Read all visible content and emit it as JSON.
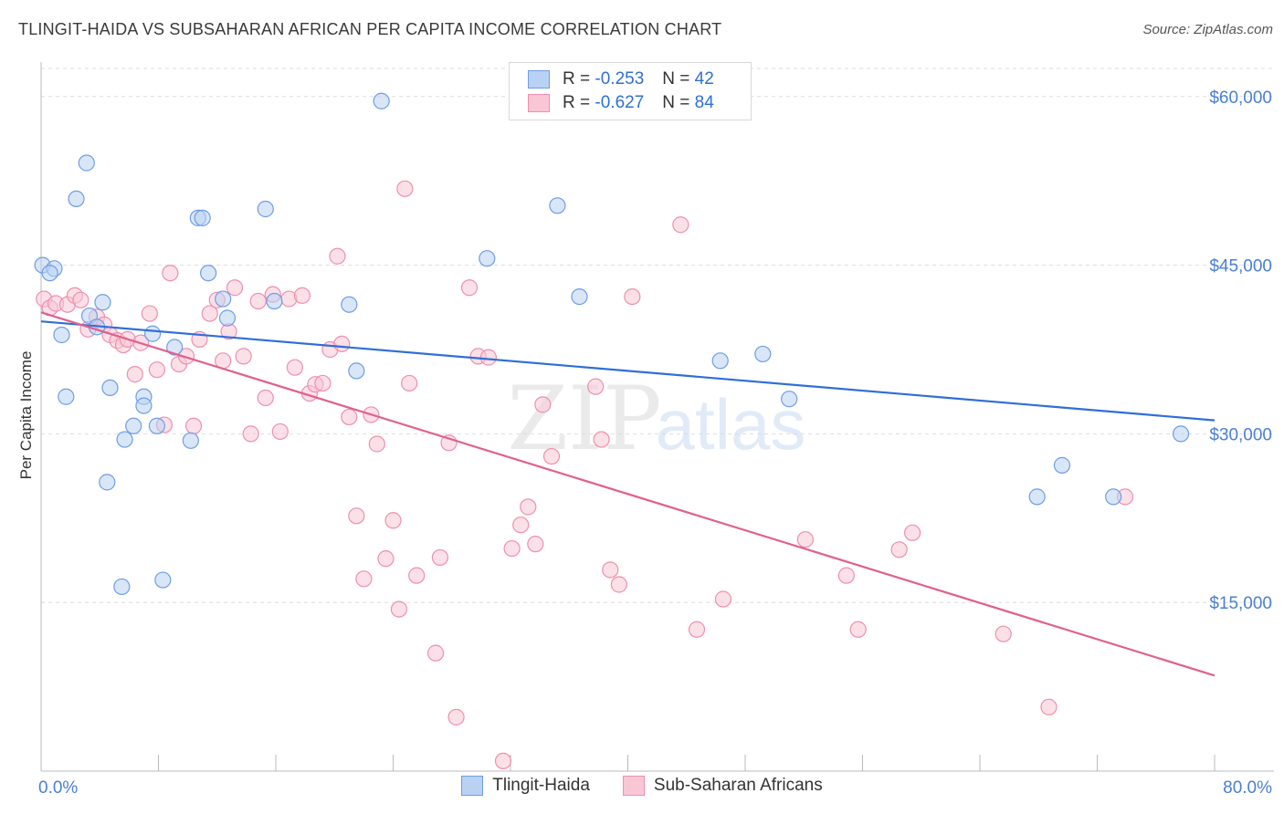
{
  "title": "TLINGIT-HAIDA VS SUBSAHARAN AFRICAN PER CAPITA INCOME CORRELATION CHART",
  "source": "Source: ZipAtlas.com",
  "watermark": {
    "zip": "ZIP",
    "atlas": "atlas"
  },
  "legend": {
    "rows": [
      {
        "r_label": "R =",
        "r_value": "-0.253",
        "n_label": "N =",
        "n_value": "42"
      },
      {
        "r_label": "R =",
        "r_value": "-0.627",
        "n_label": "N =",
        "n_value": "84"
      }
    ]
  },
  "colors": {
    "blue_fill": "#b9d1f3",
    "blue_stroke": "#6d9ee6",
    "blue_line": "#2f6fd6",
    "pink_fill": "#f9c6d6",
    "pink_stroke": "#ee8fb0",
    "pink_line": "#e0608e",
    "tick_label": "#4a7fd4",
    "grid": "#dddddd"
  },
  "chart_data": {
    "type": "scatter",
    "title": "TLINGIT-HAIDA VS SUBSAHARAN AFRICAN PER CAPITA INCOME CORRELATION CHART",
    "xlabel": "",
    "ylabel": "Per Capita Income",
    "xlim": [
      0,
      80
    ],
    "ylim": [
      0,
      62500
    ],
    "x_tick_labels": [
      "0.0%",
      "80.0%"
    ],
    "y_ticks": [
      15000,
      30000,
      45000,
      60000
    ],
    "y_tick_labels": [
      "$15,000",
      "$30,000",
      "$45,000",
      "$60,000"
    ],
    "grid": true,
    "legend_position": "top-center",
    "series": [
      {
        "name": "Tlingit-Haida",
        "trend": {
          "x": [
            0,
            80
          ],
          "y": [
            40000,
            31200
          ]
        },
        "points": [
          [
            0.1,
            45000
          ],
          [
            0.9,
            44700
          ],
          [
            1.4,
            38800
          ],
          [
            1.7,
            33300
          ],
          [
            2.4,
            50900
          ],
          [
            3.1,
            54100
          ],
          [
            3.3,
            40500
          ],
          [
            4.2,
            41700
          ],
          [
            3.8,
            39500
          ],
          [
            4.5,
            25700
          ],
          [
            4.7,
            34100
          ],
          [
            5.5,
            16400
          ],
          [
            5.7,
            29500
          ],
          [
            6.3,
            30700
          ],
          [
            7.0,
            33300
          ],
          [
            7.0,
            32500
          ],
          [
            7.6,
            38900
          ],
          [
            7.9,
            30700
          ],
          [
            8.3,
            17000
          ],
          [
            9.1,
            37700
          ],
          [
            10.2,
            29400
          ],
          [
            10.7,
            49200
          ],
          [
            11.0,
            49200
          ],
          [
            11.4,
            44300
          ],
          [
            12.4,
            42000
          ],
          [
            12.7,
            40300
          ],
          [
            15.3,
            50000
          ],
          [
            15.9,
            41800
          ],
          [
            23.2,
            59600
          ],
          [
            21.0,
            41500
          ],
          [
            21.5,
            35600
          ],
          [
            30.4,
            45600
          ],
          [
            35.2,
            50300
          ],
          [
            36.7,
            42200
          ],
          [
            46.3,
            36500
          ],
          [
            49.2,
            37100
          ],
          [
            51.0,
            33100
          ],
          [
            67.9,
            24400
          ],
          [
            69.6,
            27200
          ],
          [
            73.1,
            24400
          ],
          [
            77.7,
            30000
          ],
          [
            0.6,
            44300
          ]
        ]
      },
      {
        "name": "Sub-Saharan Africans",
        "trend": {
          "x": [
            0,
            80
          ],
          "y": [
            40800,
            8500
          ]
        },
        "points": [
          [
            0.2,
            42000
          ],
          [
            0.6,
            41200
          ],
          [
            1.0,
            41600
          ],
          [
            1.8,
            41500
          ],
          [
            2.3,
            42300
          ],
          [
            2.7,
            41900
          ],
          [
            3.2,
            39300
          ],
          [
            3.8,
            40400
          ],
          [
            4.3,
            39700
          ],
          [
            4.7,
            38800
          ],
          [
            5.2,
            38300
          ],
          [
            5.6,
            37900
          ],
          [
            5.9,
            38400
          ],
          [
            6.4,
            35300
          ],
          [
            6.8,
            38100
          ],
          [
            7.4,
            40700
          ],
          [
            7.9,
            35700
          ],
          [
            8.4,
            30800
          ],
          [
            8.8,
            44300
          ],
          [
            9.4,
            36200
          ],
          [
            9.9,
            36900
          ],
          [
            10.4,
            30700
          ],
          [
            10.8,
            38400
          ],
          [
            11.5,
            40700
          ],
          [
            12.0,
            41900
          ],
          [
            12.4,
            36500
          ],
          [
            12.8,
            39100
          ],
          [
            13.2,
            43000
          ],
          [
            13.8,
            36900
          ],
          [
            14.3,
            30000
          ],
          [
            14.8,
            41800
          ],
          [
            15.3,
            33200
          ],
          [
            15.8,
            42400
          ],
          [
            16.3,
            30200
          ],
          [
            16.9,
            42000
          ],
          [
            17.3,
            35900
          ],
          [
            17.8,
            42300
          ],
          [
            18.3,
            33600
          ],
          [
            18.7,
            34400
          ],
          [
            19.2,
            34500
          ],
          [
            19.7,
            37500
          ],
          [
            20.2,
            45800
          ],
          [
            20.5,
            38000
          ],
          [
            21.0,
            31500
          ],
          [
            21.5,
            22700
          ],
          [
            22.0,
            17100
          ],
          [
            22.5,
            31700
          ],
          [
            22.9,
            29100
          ],
          [
            23.5,
            18900
          ],
          [
            24.0,
            22300
          ],
          [
            24.4,
            14400
          ],
          [
            24.8,
            51800
          ],
          [
            25.1,
            34500
          ],
          [
            25.6,
            17400
          ],
          [
            26.9,
            10500
          ],
          [
            27.2,
            19000
          ],
          [
            27.8,
            29200
          ],
          [
            28.3,
            4800
          ],
          [
            29.2,
            43000
          ],
          [
            29.8,
            36900
          ],
          [
            30.5,
            36800
          ],
          [
            31.5,
            900
          ],
          [
            32.1,
            19800
          ],
          [
            32.7,
            21900
          ],
          [
            33.2,
            23500
          ],
          [
            33.7,
            20200
          ],
          [
            34.2,
            32600
          ],
          [
            34.8,
            28000
          ],
          [
            37.8,
            34200
          ],
          [
            38.2,
            29500
          ],
          [
            38.8,
            17900
          ],
          [
            39.4,
            16600
          ],
          [
            40.3,
            42200
          ],
          [
            43.6,
            48600
          ],
          [
            44.7,
            12600
          ],
          [
            46.5,
            15300
          ],
          [
            52.1,
            20600
          ],
          [
            54.9,
            17400
          ],
          [
            55.7,
            12600
          ],
          [
            58.5,
            19700
          ],
          [
            59.4,
            21200
          ],
          [
            65.6,
            12200
          ],
          [
            68.7,
            5700
          ],
          [
            73.9,
            24400
          ]
        ]
      }
    ]
  }
}
